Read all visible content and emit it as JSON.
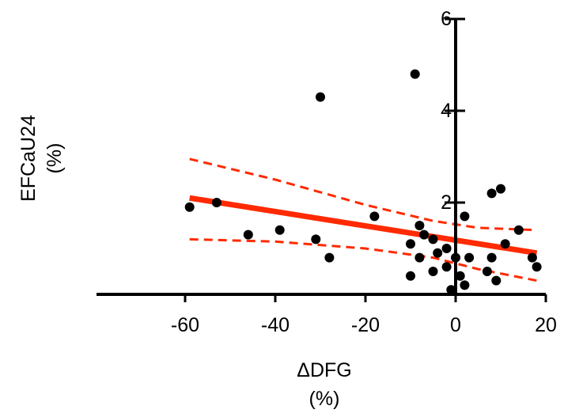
{
  "chart_data": {
    "type": "scatter",
    "title": "",
    "xlabel": "ΔDFG",
    "xlabel_unit": "(%)",
    "ylabel": "EFCaU24",
    "ylabel_unit": "(%)",
    "xlim": [
      -80,
      20
    ],
    "ylim": [
      0,
      6
    ],
    "x_ticks": [
      -60,
      -40,
      -20,
      0,
      20
    ],
    "x_tick_labels": [
      "-60",
      "-40",
      "-20",
      "0",
      "20"
    ],
    "y_ticks": [
      2,
      4,
      6
    ],
    "y_tick_labels": [
      "2",
      "4",
      "6"
    ],
    "grid": false,
    "legend": "none",
    "points": [
      {
        "x": -59,
        "y": 1.9
      },
      {
        "x": -53,
        "y": 2.0
      },
      {
        "x": -46,
        "y": 1.3
      },
      {
        "x": -39,
        "y": 1.4
      },
      {
        "x": -31,
        "y": 1.2
      },
      {
        "x": -30,
        "y": 4.3
      },
      {
        "x": -28,
        "y": 0.8
      },
      {
        "x": -18,
        "y": 1.7
      },
      {
        "x": -10,
        "y": 1.1
      },
      {
        "x": -10,
        "y": 0.4
      },
      {
        "x": -9,
        "y": 4.8
      },
      {
        "x": -8,
        "y": 1.5
      },
      {
        "x": -8,
        "y": 0.8
      },
      {
        "x": -7,
        "y": 1.3
      },
      {
        "x": -5,
        "y": 1.2
      },
      {
        "x": -5,
        "y": 0.5
      },
      {
        "x": -4,
        "y": 0.9
      },
      {
        "x": -2,
        "y": 1.0
      },
      {
        "x": -2,
        "y": 0.6
      },
      {
        "x": -1,
        "y": 0.1
      },
      {
        "x": 0,
        "y": 0.8
      },
      {
        "x": 1,
        "y": 0.4
      },
      {
        "x": 2,
        "y": 1.7
      },
      {
        "x": 2,
        "y": 0.2
      },
      {
        "x": 3,
        "y": 0.8
      },
      {
        "x": 7,
        "y": 0.5
      },
      {
        "x": 8,
        "y": 2.2
      },
      {
        "x": 8,
        "y": 0.8
      },
      {
        "x": 9,
        "y": 0.3
      },
      {
        "x": 10,
        "y": 2.3
      },
      {
        "x": 11,
        "y": 1.1
      },
      {
        "x": 14,
        "y": 1.4
      },
      {
        "x": 17,
        "y": 0.8
      },
      {
        "x": 18,
        "y": 0.6
      }
    ],
    "regression_line": {
      "x": [
        -59,
        18
      ],
      "y": [
        2.1,
        0.9
      ]
    },
    "confidence_band_upper": {
      "x": [
        -59,
        -40,
        -20,
        -5,
        5,
        18
      ],
      "y": [
        2.95,
        2.5,
        1.95,
        1.6,
        1.45,
        1.4
      ]
    },
    "confidence_band_lower": {
      "x": [
        -59,
        -40,
        -20,
        -5,
        5,
        18
      ],
      "y": [
        1.2,
        1.15,
        1.0,
        0.8,
        0.55,
        0.3
      ]
    },
    "colors": {
      "points": "#000000",
      "regression": "#ff2a00",
      "confidence_band": "#ff2a00",
      "axes": "#000000"
    }
  }
}
